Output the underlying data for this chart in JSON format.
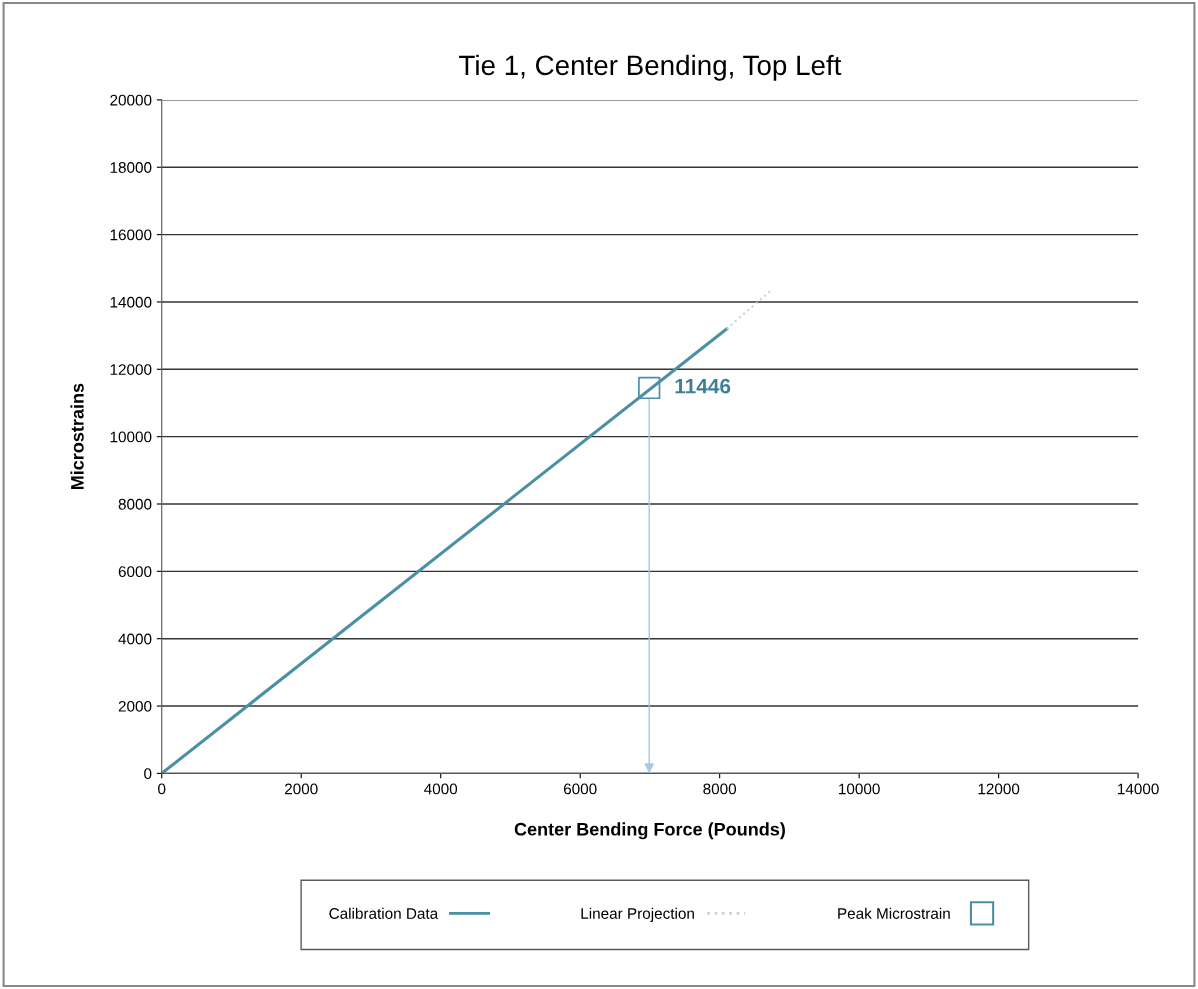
{
  "chart_data": {
    "type": "line",
    "title": "Tie 1, Center Bending, Top Left",
    "xlabel": "Center Bending Force (Pounds)",
    "ylabel": "Microstrains",
    "xlim": [
      0,
      14000
    ],
    "xticks": [
      0,
      2000,
      4000,
      6000,
      8000,
      10000,
      12000,
      14000
    ],
    "ylim": [
      0,
      20000
    ],
    "yticks": [
      0,
      2000,
      4000,
      6000,
      8000,
      10000,
      12000,
      14000,
      16000,
      18000,
      20000
    ],
    "grid": "y",
    "legend": "bottom",
    "series": [
      {
        "name": "Calibration Data",
        "line_style": "solid",
        "color": "#4a8fa3",
        "x": [
          0,
          8100
        ],
        "values": [
          0,
          13200
        ]
      },
      {
        "name": "Linear Projection",
        "line_style": "dotted",
        "color": "#c5d5dc",
        "x": [
          8100,
          8740
        ],
        "values": [
          13200,
          14350
        ]
      },
      {
        "name": "Peak Microstrain",
        "type": "scatter",
        "marker": "square",
        "color": "#4a8fa3",
        "x": [
          6990
        ],
        "values": [
          11446
        ]
      }
    ],
    "annotations": [
      {
        "text": "11446",
        "x": 6990,
        "y": 11446
      }
    ]
  }
}
